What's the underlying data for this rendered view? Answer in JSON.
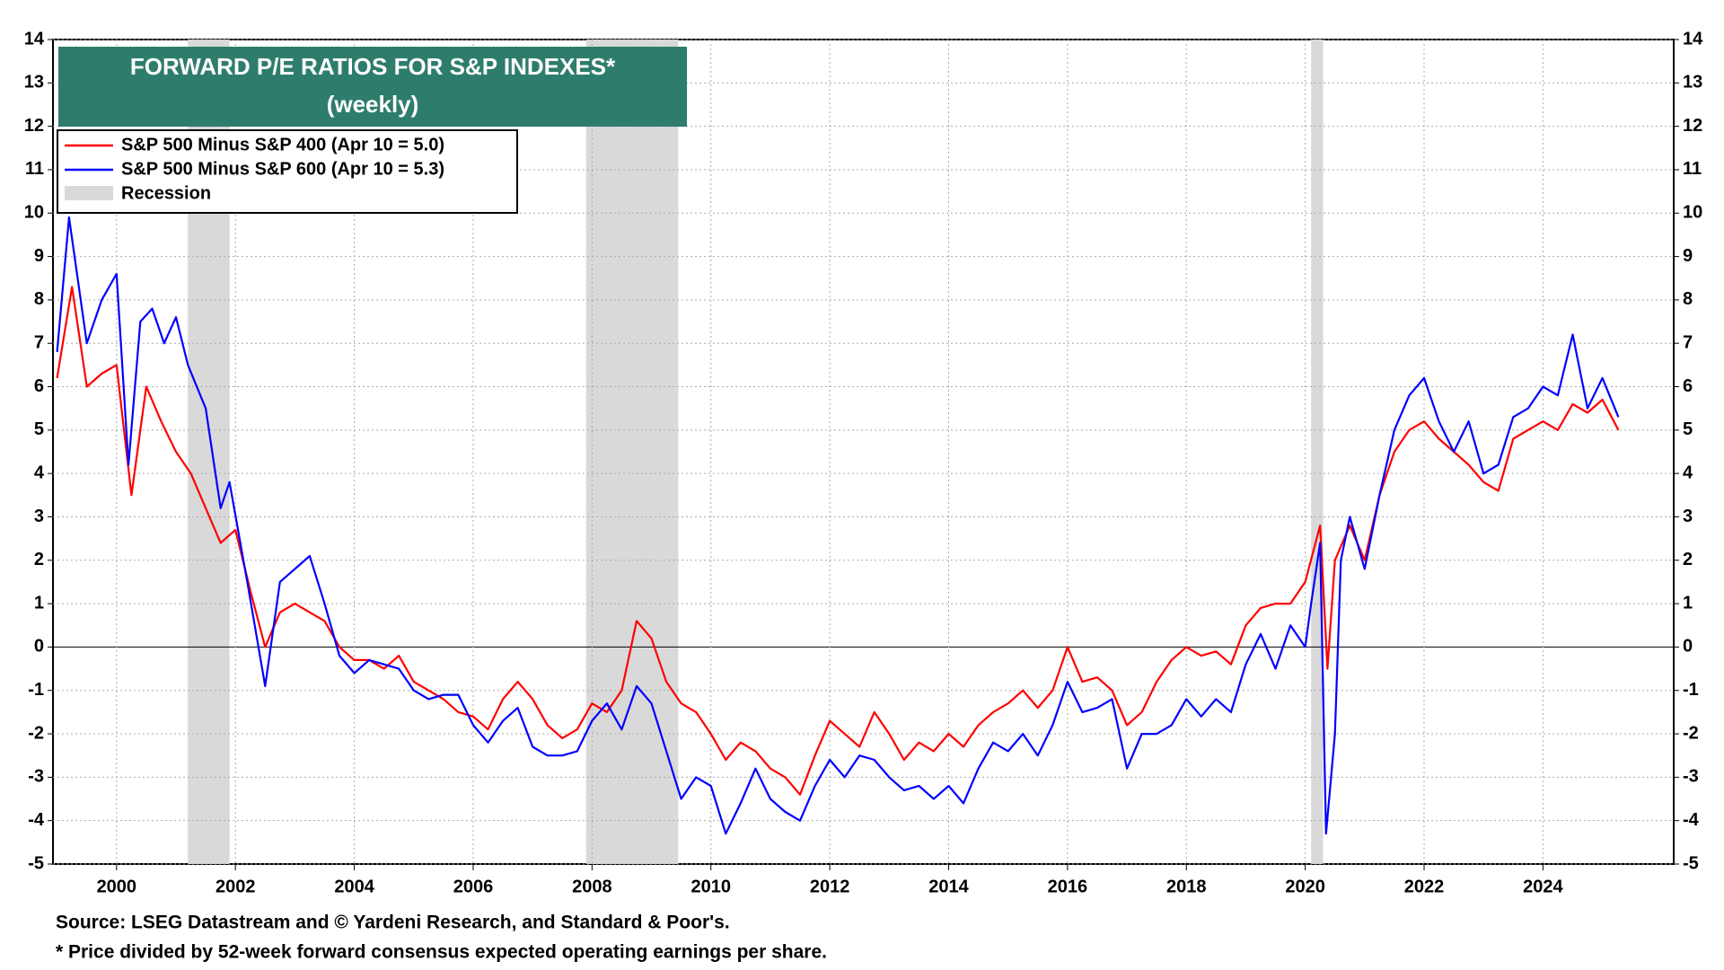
{
  "chart_data": {
    "type": "line",
    "title": "FORWARD P/E RATIOS FOR S&P INDEXES*",
    "subtitle": "(weekly)",
    "notes": [
      "Source: LSEG Datastream and © Yardeni Research, and Standard & Poor's.",
      "* Price divided by 52-week forward consensus expected operating earnings per share."
    ],
    "xlim": [
      1998.93,
      2026.2
    ],
    "xticks": [
      2000,
      2002,
      2004,
      2006,
      2008,
      2010,
      2012,
      2014,
      2016,
      2018,
      2020,
      2022,
      2024
    ],
    "ylim": [
      -5,
      14
    ],
    "yticks": [
      -5,
      -4,
      -3,
      -2,
      -1,
      0,
      1,
      2,
      3,
      4,
      5,
      6,
      7,
      8,
      9,
      10,
      11,
      12,
      13,
      14
    ],
    "grid": true,
    "legend": "upper left",
    "recession_label": "Recession",
    "recession_color": "#d9d9d9",
    "recessions": [
      {
        "start": 2001.2,
        "end": 2001.9
      },
      {
        "start": 2007.9,
        "end": 2009.45
      },
      {
        "start": 2020.1,
        "end": 2020.3
      }
    ],
    "series": [
      {
        "name": "S&P 500 Minus S&P 400 (Apr 10 = 5.0)",
        "color": "#ff0000",
        "x": [
          1999.0,
          1999.25,
          1999.5,
          1999.75,
          2000.0,
          2000.25,
          2000.5,
          2000.75,
          2001.0,
          2001.25,
          2001.5,
          2001.75,
          2002.0,
          2002.25,
          2002.5,
          2002.75,
          2003.0,
          2003.25,
          2003.5,
          2003.75,
          2004.0,
          2004.25,
          2004.5,
          2004.75,
          2005.0,
          2005.25,
          2005.5,
          2005.75,
          2006.0,
          2006.25,
          2006.5,
          2006.75,
          2007.0,
          2007.25,
          2007.5,
          2007.75,
          2008.0,
          2008.25,
          2008.5,
          2008.75,
          2009.0,
          2009.25,
          2009.5,
          2009.75,
          2010.0,
          2010.25,
          2010.5,
          2010.75,
          2011.0,
          2011.25,
          2011.5,
          2011.75,
          2012.0,
          2012.25,
          2012.5,
          2012.75,
          2013.0,
          2013.25,
          2013.5,
          2013.75,
          2014.0,
          2014.25,
          2014.5,
          2014.75,
          2015.0,
          2015.25,
          2015.5,
          2015.75,
          2016.0,
          2016.25,
          2016.5,
          2016.75,
          2017.0,
          2017.25,
          2017.5,
          2017.75,
          2018.0,
          2018.25,
          2018.5,
          2018.75,
          2019.0,
          2019.25,
          2019.5,
          2019.75,
          2020.0,
          2020.25,
          2020.375,
          2020.5,
          2020.75,
          2021.0,
          2021.25,
          2021.5,
          2021.75,
          2022.0,
          2022.25,
          2022.5,
          2022.75,
          2023.0,
          2023.25,
          2023.5,
          2023.75,
          2024.0,
          2024.25,
          2024.5,
          2024.75,
          2025.0,
          2025.27
        ],
        "values": [
          6.2,
          8.3,
          6.0,
          6.3,
          6.5,
          3.5,
          6.0,
          5.2,
          4.5,
          4.0,
          3.2,
          2.4,
          2.7,
          1.3,
          0.0,
          0.8,
          1.0,
          0.8,
          0.6,
          0.0,
          -0.3,
          -0.3,
          -0.5,
          -0.2,
          -0.8,
          -1.0,
          -1.2,
          -1.5,
          -1.6,
          -1.9,
          -1.2,
          -0.8,
          -1.2,
          -1.8,
          -2.1,
          -1.9,
          -1.3,
          -1.5,
          -1.0,
          0.6,
          0.2,
          -0.8,
          -1.3,
          -1.5,
          -2.0,
          -2.6,
          -2.2,
          -2.4,
          -2.8,
          -3.0,
          -3.4,
          -2.5,
          -1.7,
          -2.0,
          -2.3,
          -1.5,
          -2.0,
          -2.6,
          -2.2,
          -2.4,
          -2.0,
          -2.3,
          -1.8,
          -1.5,
          -1.3,
          -1.0,
          -1.4,
          -1.0,
          0.0,
          -0.8,
          -0.7,
          -1.0,
          -1.8,
          -1.5,
          -0.8,
          -0.3,
          0.0,
          -0.2,
          -0.1,
          -0.4,
          0.5,
          0.9,
          1.0,
          1.0,
          1.5,
          2.8,
          -0.5,
          2.0,
          2.8,
          2.0,
          3.5,
          4.5,
          5.0,
          5.2,
          4.8,
          4.5,
          4.2,
          3.8,
          3.6,
          4.8,
          5.0,
          5.2,
          5.0,
          5.6,
          5.4,
          5.7,
          5.0
        ]
      },
      {
        "name": "S&P 500 Minus S&P 600 (Apr 10 = 5.3)",
        "color": "#0000ff",
        "x": [
          1999.0,
          1999.2,
          1999.5,
          1999.75,
          2000.0,
          2000.2,
          2000.4,
          2000.6,
          2000.8,
          2001.0,
          2001.2,
          2001.5,
          2001.75,
          2001.9,
          2002.2,
          2002.5,
          2002.75,
          2003.0,
          2003.25,
          2003.5,
          2003.75,
          2004.0,
          2004.25,
          2004.5,
          2004.75,
          2005.0,
          2005.25,
          2005.5,
          2005.75,
          2006.0,
          2006.25,
          2006.5,
          2006.75,
          2007.0,
          2007.25,
          2007.5,
          2007.75,
          2008.0,
          2008.25,
          2008.5,
          2008.75,
          2009.0,
          2009.25,
          2009.5,
          2009.75,
          2010.0,
          2010.25,
          2010.5,
          2010.75,
          2011.0,
          2011.25,
          2011.5,
          2011.75,
          2012.0,
          2012.25,
          2012.5,
          2012.75,
          2013.0,
          2013.25,
          2013.5,
          2013.75,
          2014.0,
          2014.25,
          2014.5,
          2014.75,
          2015.0,
          2015.25,
          2015.5,
          2015.75,
          2016.0,
          2016.25,
          2016.5,
          2016.75,
          2017.0,
          2017.25,
          2017.5,
          2017.75,
          2018.0,
          2018.25,
          2018.5,
          2018.75,
          2019.0,
          2019.25,
          2019.5,
          2019.75,
          2020.0,
          2020.1,
          2020.25,
          2020.35,
          2020.5,
          2020.6,
          2020.75,
          2021.0,
          2021.25,
          2021.5,
          2021.75,
          2022.0,
          2022.25,
          2022.5,
          2022.75,
          2023.0,
          2023.25,
          2023.5,
          2023.75,
          2024.0,
          2024.25,
          2024.5,
          2024.75,
          2025.0,
          2025.27
        ],
        "values": [
          6.8,
          9.9,
          7.0,
          8.0,
          8.6,
          4.2,
          7.5,
          7.8,
          7.0,
          7.6,
          6.5,
          5.5,
          3.2,
          3.8,
          1.5,
          -0.9,
          1.5,
          1.8,
          2.1,
          1.0,
          -0.2,
          -0.6,
          -0.3,
          -0.4,
          -0.5,
          -1.0,
          -1.2,
          -1.1,
          -1.1,
          -1.8,
          -2.2,
          -1.7,
          -1.4,
          -2.3,
          -2.5,
          -2.5,
          -2.4,
          -1.7,
          -1.3,
          -1.9,
          -0.9,
          -1.3,
          -2.4,
          -3.5,
          -3.0,
          -3.2,
          -4.3,
          -3.6,
          -2.8,
          -3.5,
          -3.8,
          -4.0,
          -3.2,
          -2.6,
          -3.0,
          -2.5,
          -2.6,
          -3.0,
          -3.3,
          -3.2,
          -3.5,
          -3.2,
          -3.6,
          -2.8,
          -2.2,
          -2.4,
          -2.0,
          -2.5,
          -1.8,
          -0.8,
          -1.5,
          -1.4,
          -1.2,
          -2.8,
          -2.0,
          -2.0,
          -1.8,
          -1.2,
          -1.6,
          -1.2,
          -1.5,
          -0.4,
          0.3,
          -0.5,
          0.5,
          0.0,
          1.0,
          2.4,
          -4.3,
          -2.0,
          2.0,
          3.0,
          1.8,
          3.5,
          5.0,
          5.8,
          6.2,
          5.2,
          4.5,
          5.2,
          4.0,
          4.2,
          5.3,
          5.5,
          6.0,
          5.8,
          7.2,
          5.5,
          6.2,
          5.3
        ]
      }
    ]
  }
}
